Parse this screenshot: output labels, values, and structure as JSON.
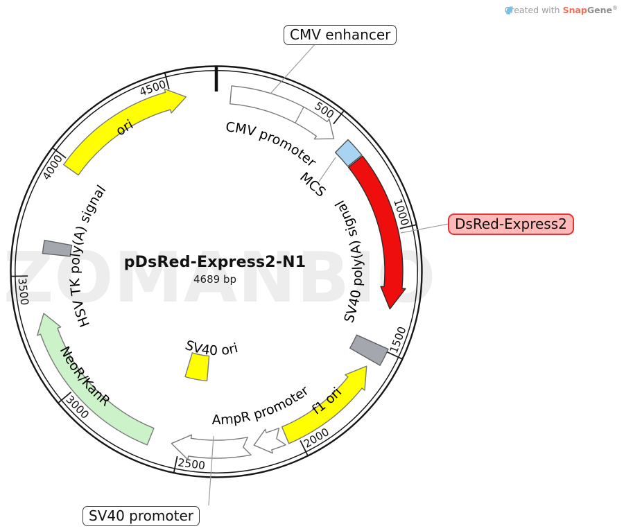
{
  "credit": {
    "prefix": "Created with ",
    "brand_red": "Snap",
    "brand_gray": "Gene",
    "registered": "®"
  },
  "watermark": "ZOMANBIO",
  "plasmid": {
    "name": "pDsRed-Express2-N1",
    "size_label": "4689 bp",
    "length_bp": 4689
  },
  "ticks": [
    500,
    1000,
    1500,
    2000,
    2500,
    3000,
    3500,
    4000,
    4500
  ],
  "features": [
    {
      "id": "cmv_enhancer",
      "label": "CMV enhancer",
      "start": 61,
      "end": 364,
      "direction": "forward",
      "fill": "#ffffff",
      "stroke": "#7a7a7a"
    },
    {
      "id": "cmv_promoter",
      "label": "CMV promoter",
      "start": 365,
      "end": 540,
      "direction": "forward",
      "fill": "#ffffff",
      "stroke": "#7a7a7a"
    },
    {
      "id": "mcs",
      "label": "MCS",
      "start": 585,
      "end": 668,
      "direction": "none",
      "fill": "#a9d3f2",
      "stroke": "#4f4f4f"
    },
    {
      "id": "dsred",
      "label": "DsRed-Express2",
      "start": 673,
      "end": 1330,
      "direction": "forward",
      "fill": "#ee0e0e",
      "stroke": "#2b2b2b"
    },
    {
      "id": "sv40_polya",
      "label": "SV40 poly(A) signal",
      "start": 1488,
      "end": 1560,
      "direction": "none",
      "fill": "#a4a7ae",
      "stroke": "#5f6368"
    },
    {
      "id": "f1_ori",
      "label": "f1 ori",
      "start": 1591,
      "end": 2046,
      "direction": "reverse",
      "fill": "#ffff00",
      "stroke": "#7a7a7a"
    },
    {
      "id": "ampr_promoter",
      "label": "AmpR promoter",
      "start": 2060,
      "end": 2185,
      "direction": "forward",
      "fill": "#ffffff",
      "stroke": "#7a7a7a"
    },
    {
      "id": "sv40_promoter",
      "label": "SV40 promoter",
      "start": 2205,
      "end": 2535,
      "direction": "forward",
      "fill": "#ffffff",
      "stroke": "#7a7a7a"
    },
    {
      "id": "sv40_ori",
      "label": "SV40 ori",
      "start": 2408,
      "end": 2560,
      "direction": "none",
      "fill": "#ffff00",
      "stroke": "#7a7a7a"
    },
    {
      "id": "neor_kanr",
      "label": "NeoR/KanR",
      "start": 2628,
      "end": 3340,
      "direction": "forward",
      "fill": "#cbf2c8",
      "stroke": "#7a7a7a"
    },
    {
      "id": "hsv_tk_polya",
      "label": "HSV TK poly(A) signal",
      "start": 3595,
      "end": 3652,
      "direction": "none",
      "fill": "#a4a7ae",
      "stroke": "#5f6368"
    },
    {
      "id": "ori",
      "label": "ori",
      "start": 3973,
      "end": 4561,
      "direction": "forward",
      "fill": "#ffff00",
      "stroke": "#7a7a7a"
    }
  ]
}
